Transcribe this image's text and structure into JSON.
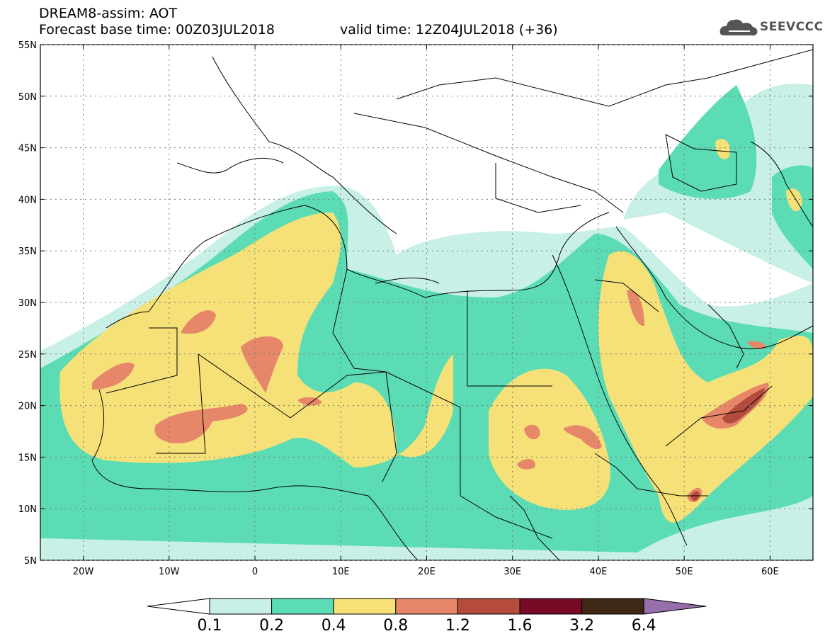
{
  "header": {
    "title": "DREAM8-assim: AOT",
    "base_time": "Forecast base time: 00Z03JUL2018",
    "valid_time": "valid time: 12Z04JUL2018 (+36)"
  },
  "logo": {
    "name": "SEEVCCC",
    "icon": "cloud-icon"
  },
  "map": {
    "lon_range": [
      -25,
      65
    ],
    "lat_range": [
      5,
      55
    ],
    "lon_ticks": [
      {
        "v": -20,
        "label": "20W"
      },
      {
        "v": -10,
        "label": "10W"
      },
      {
        "v": 0,
        "label": "0"
      },
      {
        "v": 10,
        "label": "10E"
      },
      {
        "v": 20,
        "label": "20E"
      },
      {
        "v": 30,
        "label": "30E"
      },
      {
        "v": 40,
        "label": "40E"
      },
      {
        "v": 50,
        "label": "50E"
      },
      {
        "v": 60,
        "label": "60E"
      }
    ],
    "lat_ticks": [
      {
        "v": 55,
        "label": "55N"
      },
      {
        "v": 50,
        "label": "50N"
      },
      {
        "v": 45,
        "label": "45N"
      },
      {
        "v": 40,
        "label": "40N"
      },
      {
        "v": 35,
        "label": "35N"
      },
      {
        "v": 30,
        "label": "30N"
      },
      {
        "v": 25,
        "label": "25N"
      },
      {
        "v": 20,
        "label": "20N"
      },
      {
        "v": 15,
        "label": "15N"
      },
      {
        "v": 10,
        "label": "10N"
      },
      {
        "v": 5,
        "label": "5N"
      }
    ]
  },
  "colorbar": {
    "labels": [
      "0.1",
      "0.2",
      "0.4",
      "0.8",
      "1.2",
      "1.6",
      "3.2",
      "6.4"
    ],
    "colors": [
      "#ffffff",
      "#c8f0e6",
      "#5cdcb4",
      "#f5e178",
      "#e6876a",
      "#b44b3c",
      "#780a28",
      "#3c2814",
      "#966eaa"
    ]
  }
}
